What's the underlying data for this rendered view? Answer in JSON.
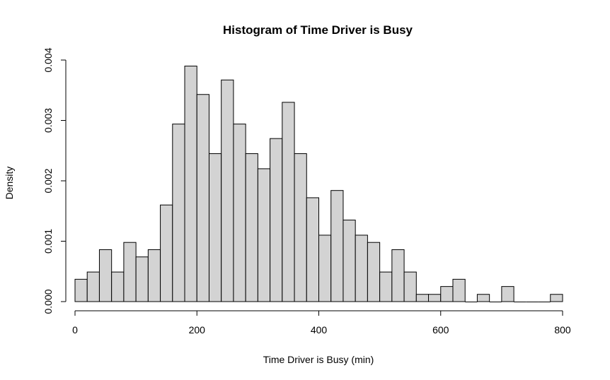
{
  "chart_data": {
    "type": "bar",
    "title": "Histogram of Time Driver is Busy",
    "xlabel": "Time Driver is Busy (min)",
    "ylabel": "Density",
    "bin_width": 20,
    "bin_start": 0,
    "values": [
      0.00037,
      0.00049,
      0.00086,
      0.00049,
      0.00098,
      0.00074,
      0.00086,
      0.0016,
      0.00294,
      0.0039,
      0.00343,
      0.00245,
      0.00367,
      0.00294,
      0.00245,
      0.0022,
      0.0027,
      0.0033,
      0.00245,
      0.00172,
      0.0011,
      0.00184,
      0.00135,
      0.0011,
      0.00098,
      0.00049,
      0.00086,
      0.00049,
      0.00012,
      0.00012,
      0.00025,
      0.00037,
      0.0,
      0.00012,
      0.0,
      0.00025,
      0.0,
      0.0,
      0.0,
      0.00012
    ],
    "xlim": [
      0,
      800
    ],
    "ylim": [
      0,
      0.004
    ],
    "xticks": [
      "0",
      "200",
      "400",
      "600",
      "800"
    ],
    "xtick_values": [
      0,
      200,
      400,
      600,
      800
    ],
    "yticks": [
      "0.000",
      "0.001",
      "0.002",
      "0.003",
      "0.004"
    ],
    "ytick_values": [
      0,
      0.001,
      0.002,
      0.003,
      0.004
    ],
    "grid": false,
    "bar_fill": "#d3d3d3",
    "bar_stroke": "#000000"
  }
}
